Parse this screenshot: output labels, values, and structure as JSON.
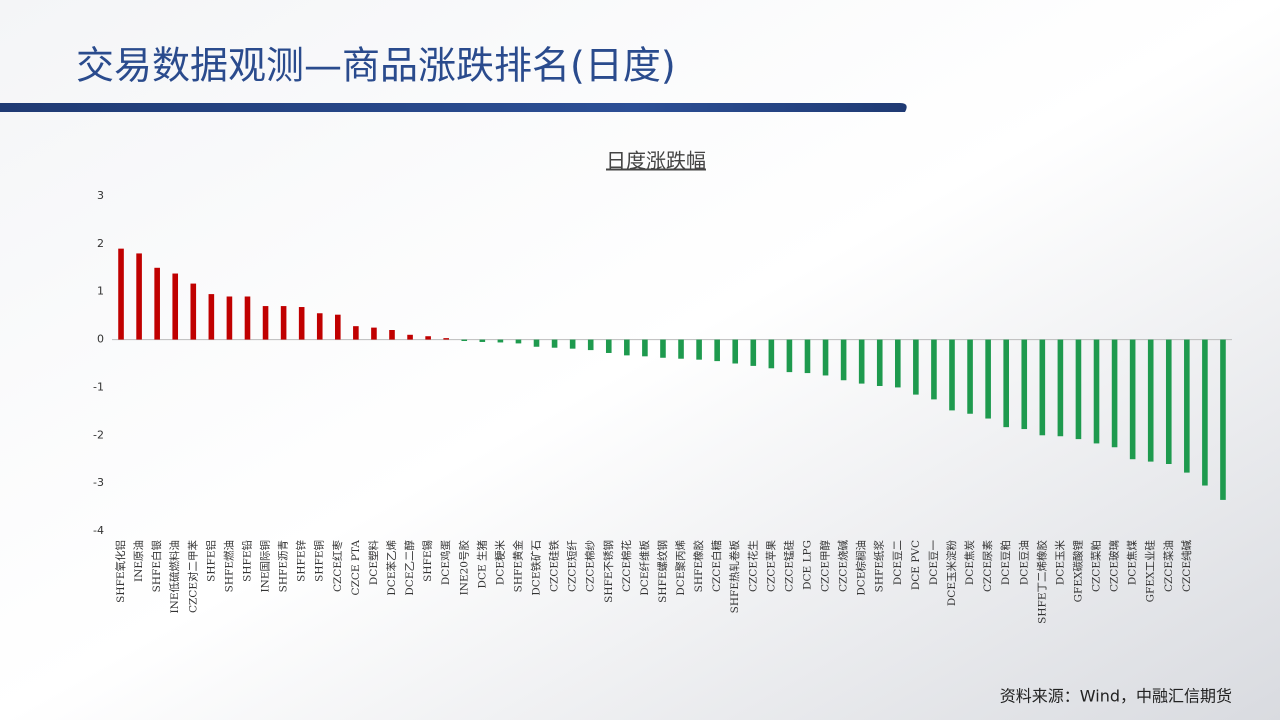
{
  "page_title": "交易数据观测—商品涨跌排名(日度)",
  "source": "资料来源：Wind，中融汇信期货",
  "chart_data": {
    "type": "bar",
    "title": "日度涨跌幅",
    "categories": [
      "SHFE氧化铝",
      "INE原油",
      "SHFE白银",
      "INE低硫燃料油",
      "CZCE对二甲苯",
      "SHFE铝",
      "SHFE燃油",
      "SHFE铅",
      "INE国际铜",
      "SHFE沥青",
      "SHFE锌",
      "SHFE铜",
      "CZCE红枣",
      "CZCE PTA",
      "DCE塑料",
      "DCE苯乙烯",
      "DCE乙二醇",
      "SHFE锡",
      "DCE鸡蛋",
      "INE20号胶",
      "DCE 生猪",
      "DCE粳米",
      "SHFE黄金",
      "DCE铁矿石",
      "CZCE硅铁",
      "CZCE短纤",
      "CZCE棉纱",
      "SHFE不锈钢",
      "CZCE棉花",
      "DCE纤维板",
      "SHFE螺纹钢",
      "DCE聚丙烯",
      "SHFE橡胶",
      "CZCE白糖",
      "SHFE热轧卷板",
      "CZCE花生",
      "CZCE苹果",
      "CZCE锰硅",
      "DCE LPG",
      "CZCE甲醇",
      "CZCE烧碱",
      "DCE棕榈油",
      "SHFE纸浆",
      "DCE豆二",
      "DCE PVC",
      "DCE豆一",
      "DCE玉米淀粉",
      "DCE焦炭",
      "CZCE尿素",
      "DCE豆粕",
      "DCE豆油",
      "SHFE丁二烯橡胶",
      "DCE玉米",
      "GFEX碳酸锂",
      "CZCE菜粕",
      "CZCE玻璃",
      "DCE焦煤",
      "GFEX工业硅",
      "CZCE菜油",
      "CZCE纯碱",
      null,
      null
    ],
    "values": [
      1.9,
      1.8,
      1.5,
      1.38,
      1.17,
      0.95,
      0.9,
      0.9,
      0.7,
      0.7,
      0.68,
      0.55,
      0.52,
      0.28,
      0.25,
      0.2,
      0.1,
      0.07,
      0.03,
      -0.03,
      -0.05,
      -0.06,
      -0.08,
      -0.15,
      -0.17,
      -0.19,
      -0.22,
      -0.28,
      -0.33,
      -0.35,
      -0.38,
      -0.4,
      -0.42,
      -0.45,
      -0.5,
      -0.55,
      -0.6,
      -0.68,
      -0.7,
      -0.75,
      -0.85,
      -0.92,
      -0.97,
      -1.0,
      -1.15,
      -1.25,
      -1.48,
      -1.55,
      -1.65,
      -1.83,
      -1.87,
      -2.0,
      -2.02,
      -2.08,
      -2.17,
      -2.25,
      -2.5,
      -2.55,
      -2.6,
      -2.78,
      -3.05,
      -3.35
    ],
    "positive_color": "#c00000",
    "negative_color": "#1e9a4e",
    "ylim": [
      -4,
      3
    ],
    "yticks": [
      3,
      2,
      1,
      0,
      -1,
      -2,
      -3,
      -4
    ]
  }
}
